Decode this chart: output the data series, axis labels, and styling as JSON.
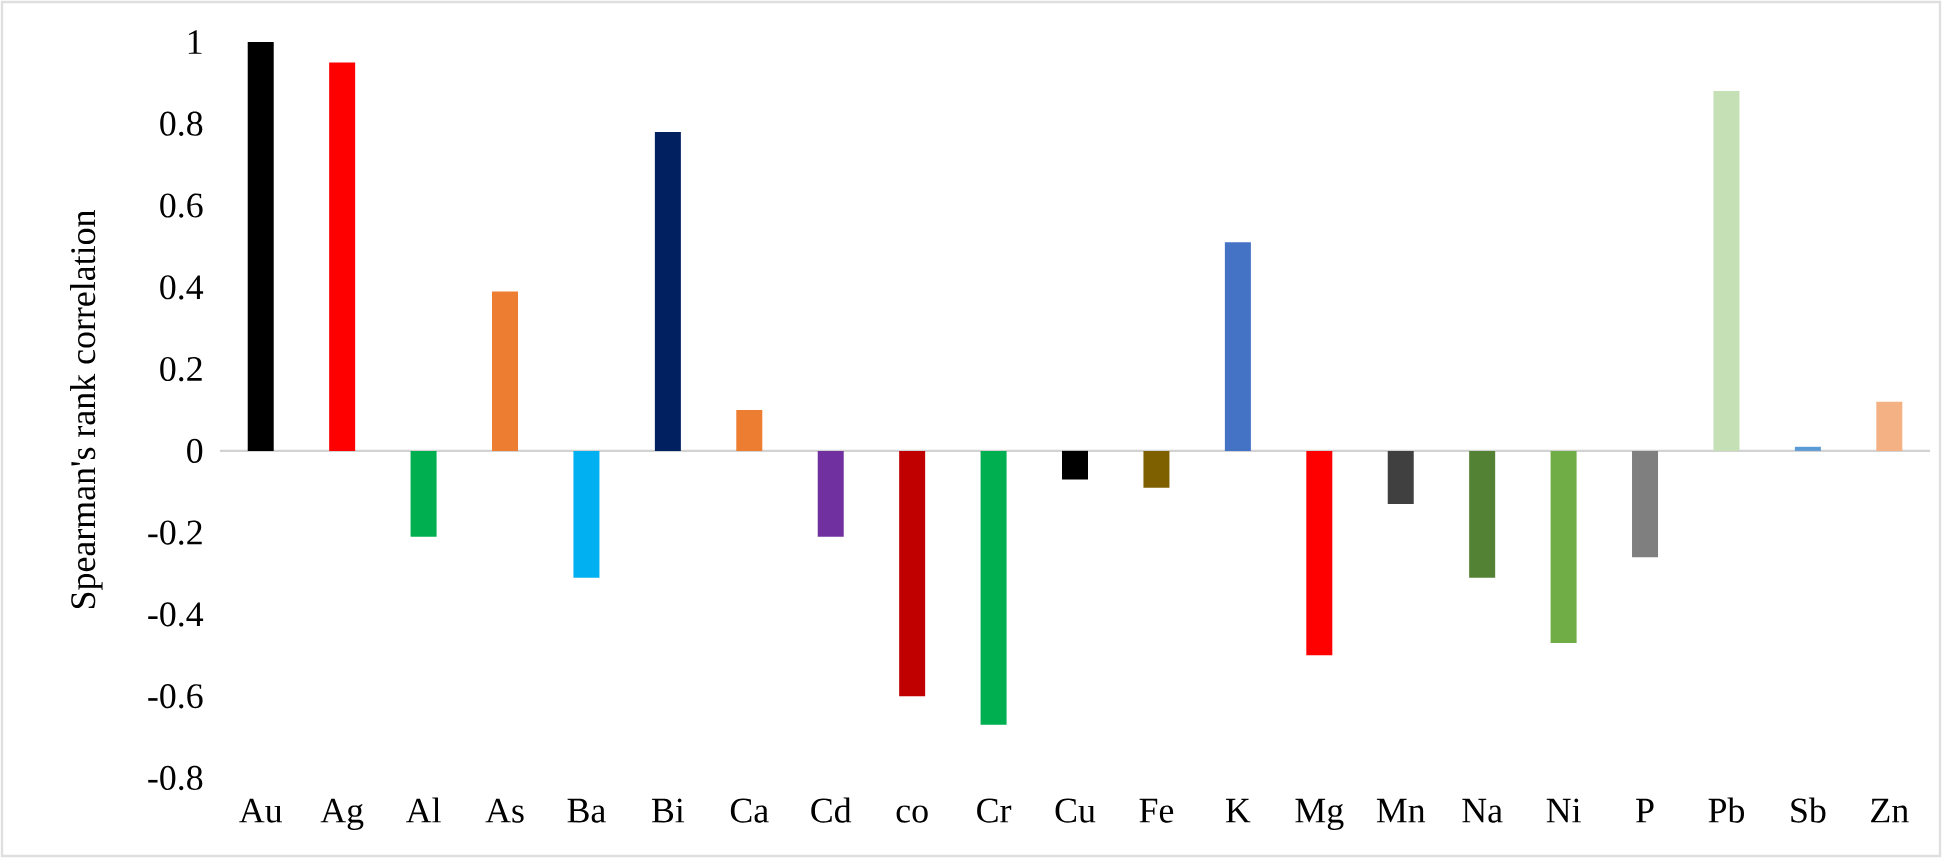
{
  "chart_data": {
    "type": "bar",
    "ylabel": "Spearman's rank correlation",
    "categories": [
      "Au",
      "Ag",
      "Al",
      "As",
      "Ba",
      "Bi",
      "Ca",
      "Cd",
      "co",
      "Cr",
      "Cu",
      "Fe",
      "K",
      "Mg",
      "Mn",
      "Na",
      "Ni",
      "P",
      "Pb",
      "Sb",
      "Zn"
    ],
    "values": [
      1.0,
      0.95,
      -0.21,
      0.39,
      -0.31,
      0.78,
      0.1,
      -0.21,
      -0.6,
      -0.67,
      -0.07,
      -0.09,
      0.51,
      -0.5,
      -0.13,
      -0.31,
      -0.47,
      -0.26,
      0.88,
      0.01,
      0.12
    ],
    "colors": [
      "#000000",
      "#ff0000",
      "#00b050",
      "#ed7d31",
      "#00b0f0",
      "#002060",
      "#ed7d31",
      "#7030a0",
      "#c00000",
      "#00b050",
      "#000000",
      "#7f6000",
      "#4472c4",
      "#ff0000",
      "#404040",
      "#548235",
      "#70ad47",
      "#7f7f7f",
      "#c5e0b4",
      "#5b9bd5",
      "#f4b183"
    ],
    "ylim": [
      -0.8,
      1
    ],
    "yticks": [
      -0.8,
      -0.6,
      -0.4,
      -0.2,
      0,
      0.2,
      0.4,
      0.6,
      0.8,
      1
    ]
  }
}
